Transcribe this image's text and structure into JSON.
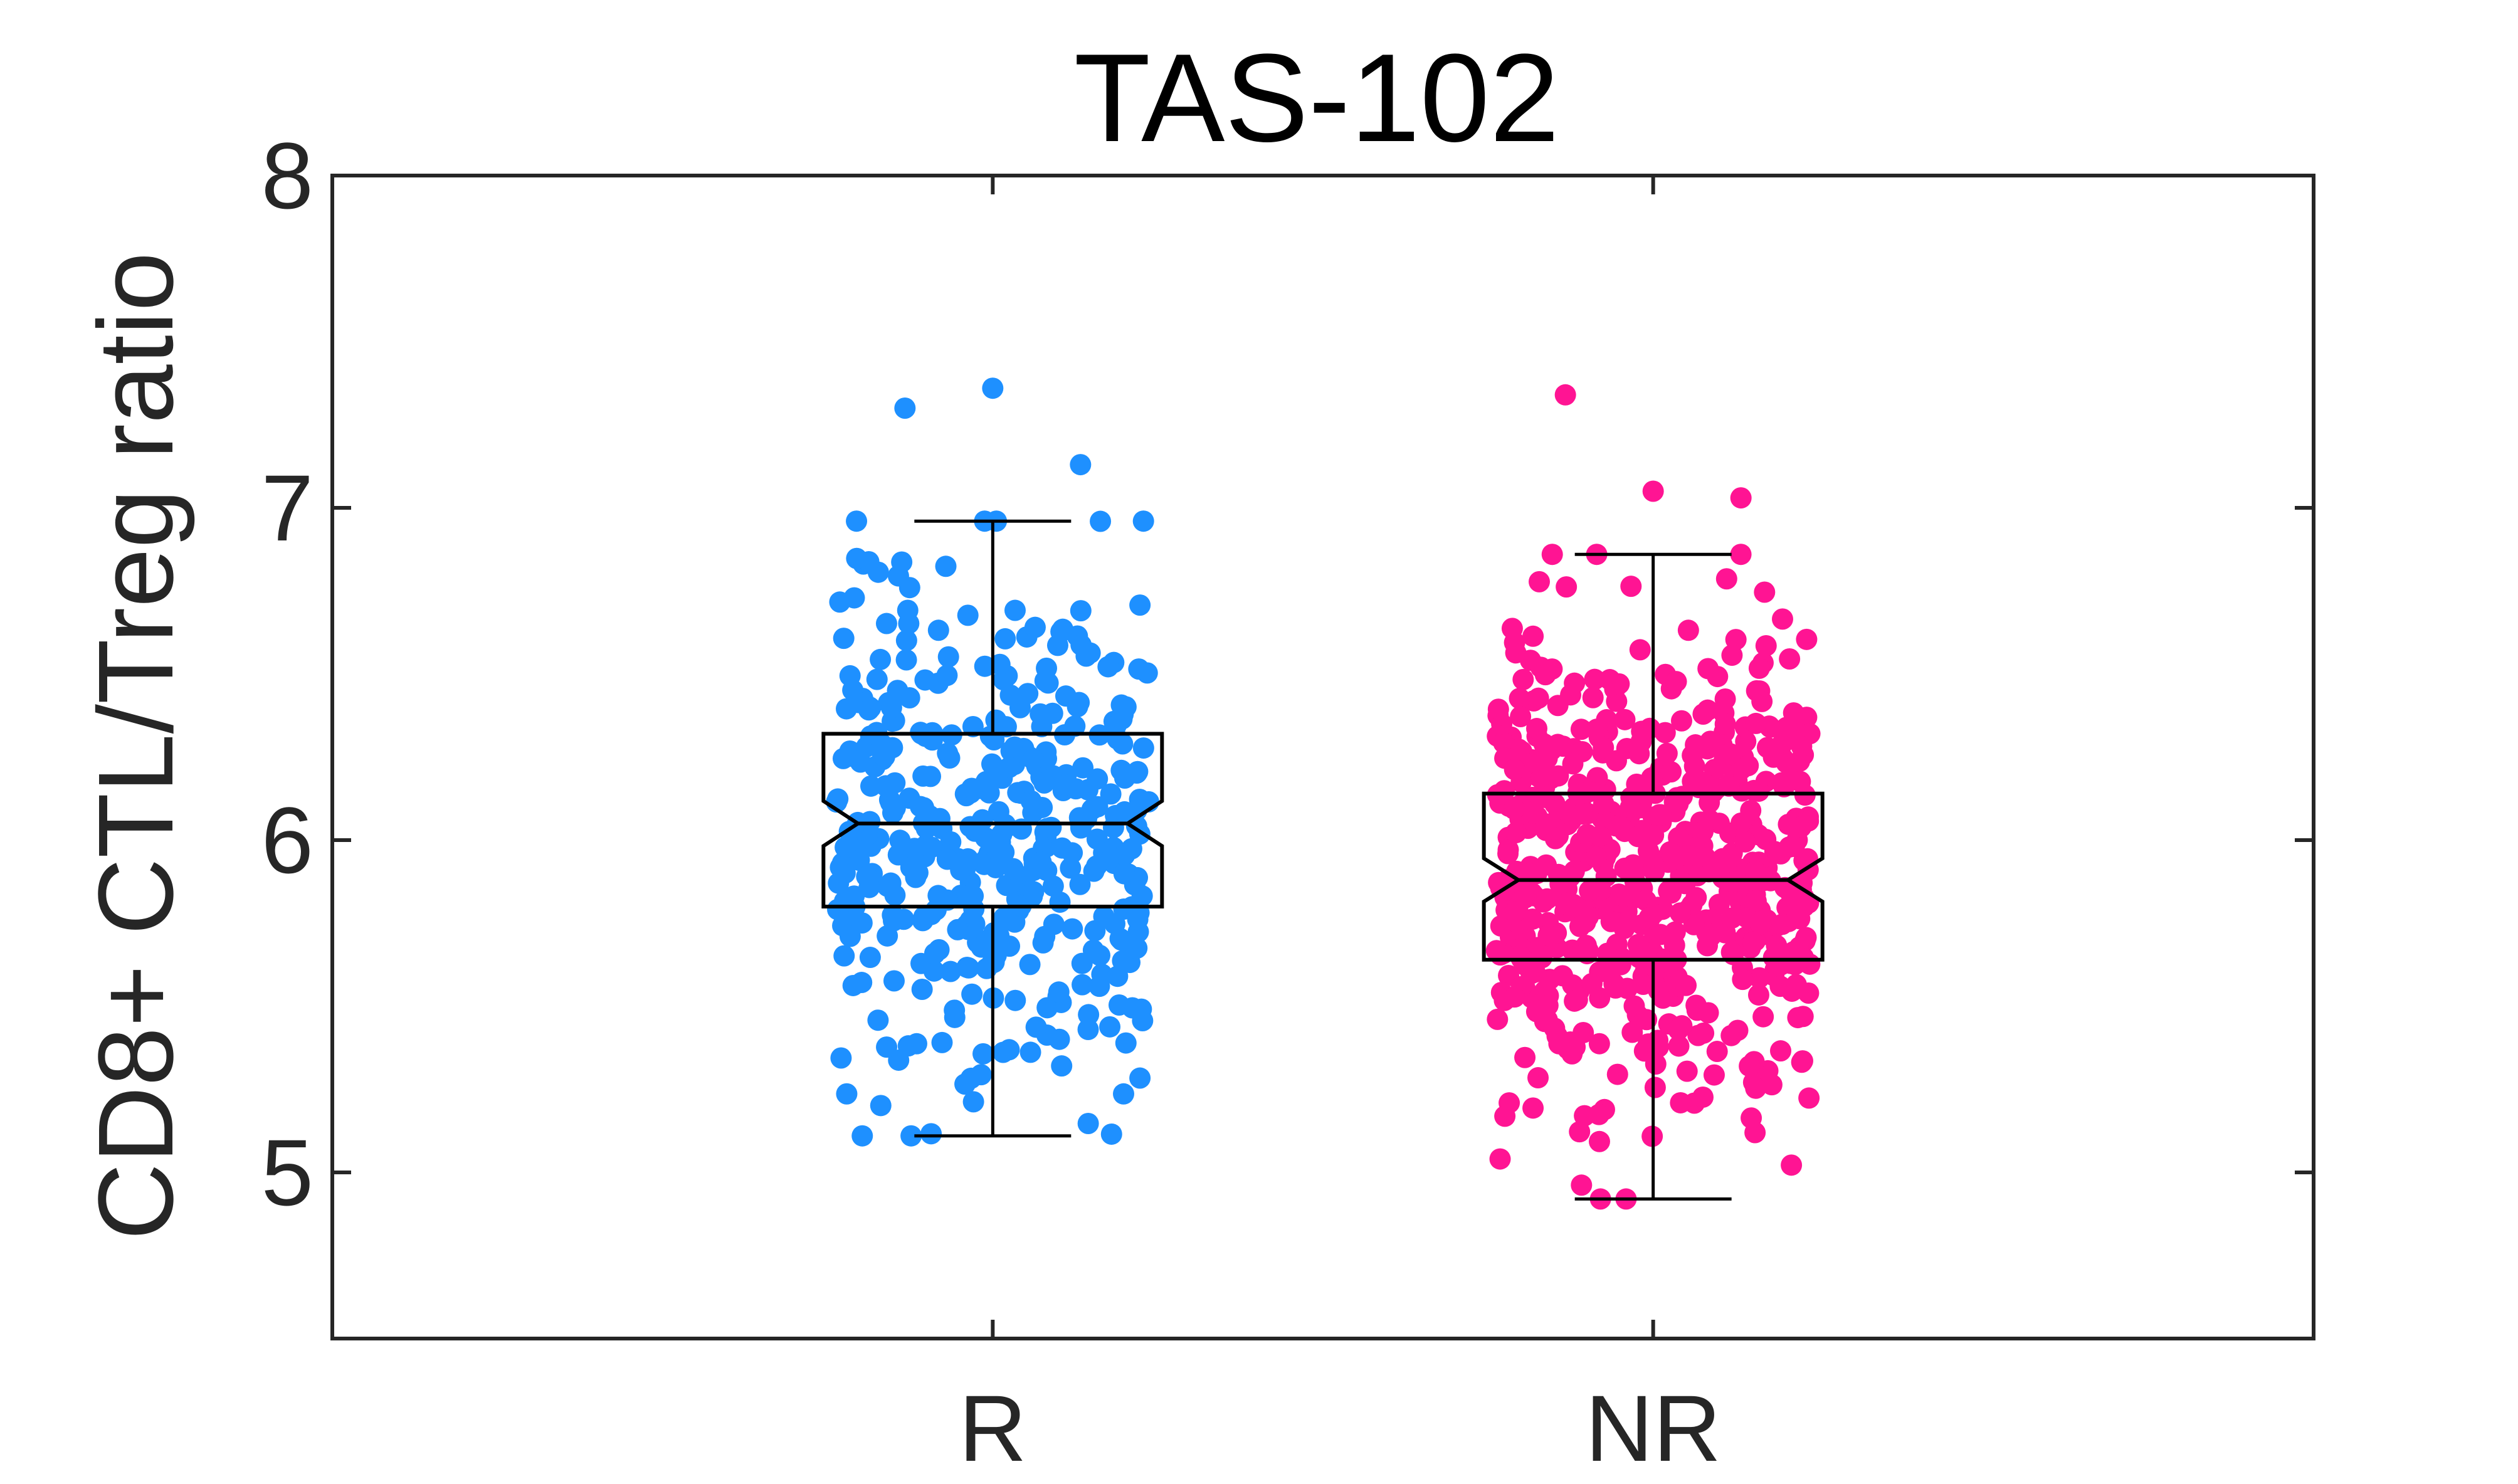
{
  "chart_data": {
    "type": "box",
    "title": "TAS-102",
    "ylabel": "CD8+ CTL/Treg ratio",
    "xlabel": "",
    "ylim": [
      4.5,
      8
    ],
    "yticks": [
      "5",
      "6",
      "7",
      "8"
    ],
    "grid": false,
    "categories": [
      "R",
      "NR"
    ],
    "series": [
      {
        "category": "R",
        "color": "#1E90FF",
        "n_points_approx": 420,
        "whisker_low": 5.11,
        "q1": 5.8,
        "median": 6.05,
        "q3": 6.32,
        "whisker_high": 6.96,
        "outliers": [
          7.3,
          7.36,
          7.13
        ]
      },
      {
        "category": "NR",
        "color": "#FF1493",
        "n_points_approx": 620,
        "whisker_low": 4.92,
        "q1": 5.64,
        "median": 5.88,
        "q3": 6.14,
        "whisker_high": 6.86,
        "outliers": [
          7.34,
          7.05,
          7.03
        ]
      }
    ]
  }
}
